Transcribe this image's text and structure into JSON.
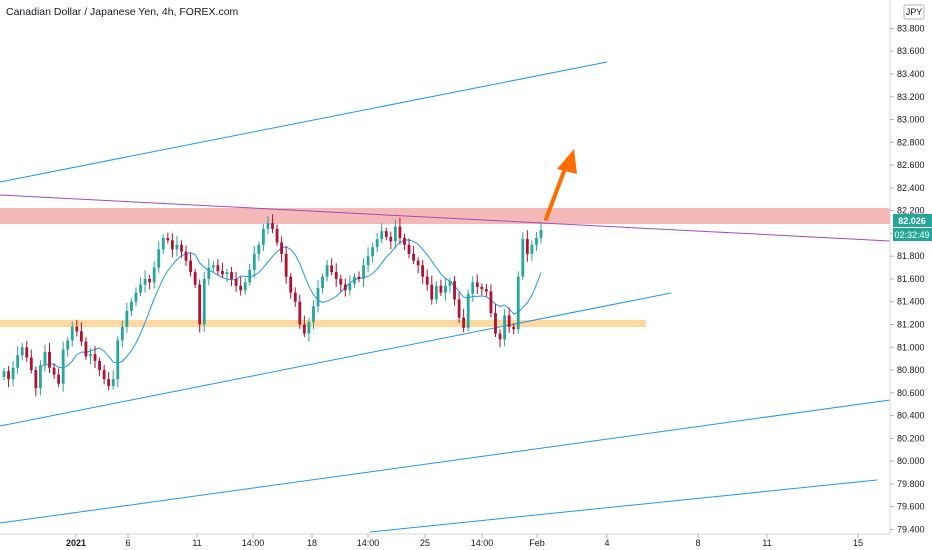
{
  "header": {
    "title": "Canadian Dollar / Japanese Yen, 4h, FOREX.com",
    "currency_badge": "JPY"
  },
  "price_tags": {
    "last_price": "82.026",
    "countdown": "02:32:49",
    "color": "#26a69a"
  },
  "chart_data": {
    "type": "candlestick",
    "title": "Canadian Dollar / Japanese Yen, 4h, FOREX.com",
    "symbol": "CADJPY",
    "timeframe": "4h",
    "source": "FOREX.com",
    "y_range": [
      79.36,
      84.05
    ],
    "y_ticks": [
      "83.800",
      "83.600",
      "83.400",
      "83.200",
      "83.000",
      "82.800",
      "82.600",
      "82.400",
      "82.200",
      "82.000",
      "81.800",
      "81.600",
      "81.400",
      "81.200",
      "81.000",
      "80.800",
      "80.600",
      "80.400",
      "80.200",
      "80.000",
      "79.800",
      "79.600",
      "79.400"
    ],
    "x_ticks": [
      "2021",
      "6",
      "11",
      "14:00",
      "18",
      "14:00",
      "25",
      "14:00",
      "Feb",
      "4",
      "8",
      "11",
      "15"
    ],
    "up_color": "#26a69a",
    "down_color": "#b2102f",
    "ma_color": "#2196f3",
    "closes": [
      80.79,
      80.72,
      80.82,
      80.93,
      81.0,
      80.91,
      80.8,
      80.64,
      80.84,
      80.96,
      80.82,
      80.76,
      80.68,
      80.98,
      81.06,
      81.18,
      81.14,
      81.05,
      80.92,
      80.94,
      80.88,
      80.8,
      80.72,
      80.66,
      80.72,
      81.06,
      81.18,
      81.32,
      81.4,
      81.48,
      81.55,
      81.6,
      81.57,
      81.7,
      81.86,
      81.96,
      81.94,
      81.86,
      81.9,
      81.84,
      81.76,
      81.66,
      81.55,
      81.2,
      81.6,
      81.7,
      81.72,
      81.67,
      81.64,
      81.66,
      81.6,
      81.54,
      81.5,
      81.57,
      81.68,
      81.82,
      81.9,
      82.04,
      82.09,
      82.04,
      81.92,
      81.82,
      81.62,
      81.48,
      81.4,
      81.2,
      81.12,
      81.22,
      81.36,
      81.52,
      81.62,
      81.72,
      81.66,
      81.6,
      81.55,
      81.5,
      81.56,
      81.62,
      81.6,
      81.72,
      81.8,
      81.88,
      81.95,
      82.02,
      81.97,
      81.93,
      82.06,
      81.96,
      81.9,
      81.82,
      81.76,
      81.72,
      81.62,
      81.55,
      81.42,
      81.54,
      81.48,
      81.54,
      81.58,
      81.42,
      81.26,
      81.17,
      81.47,
      81.57,
      81.53,
      81.51,
      81.49,
      81.3,
      81.12,
      81.07,
      81.28,
      81.18,
      81.16,
      81.62,
      81.95,
      81.82,
      81.9,
      81.96,
      82.03
    ],
    "annotations": [
      {
        "type": "resistance_zone",
        "from": 81.98,
        "to": 82.13,
        "color": "#ef9a9a"
      },
      {
        "type": "support_zone",
        "from": 81.12,
        "to": 81.19,
        "color": "#ffcc80"
      },
      {
        "type": "upward_arrow",
        "color": "#ff6d00"
      },
      {
        "type": "trend_lines",
        "count": 5,
        "color": "#2196f3"
      },
      {
        "type": "descending_line",
        "color": "#ab47bc"
      }
    ]
  }
}
